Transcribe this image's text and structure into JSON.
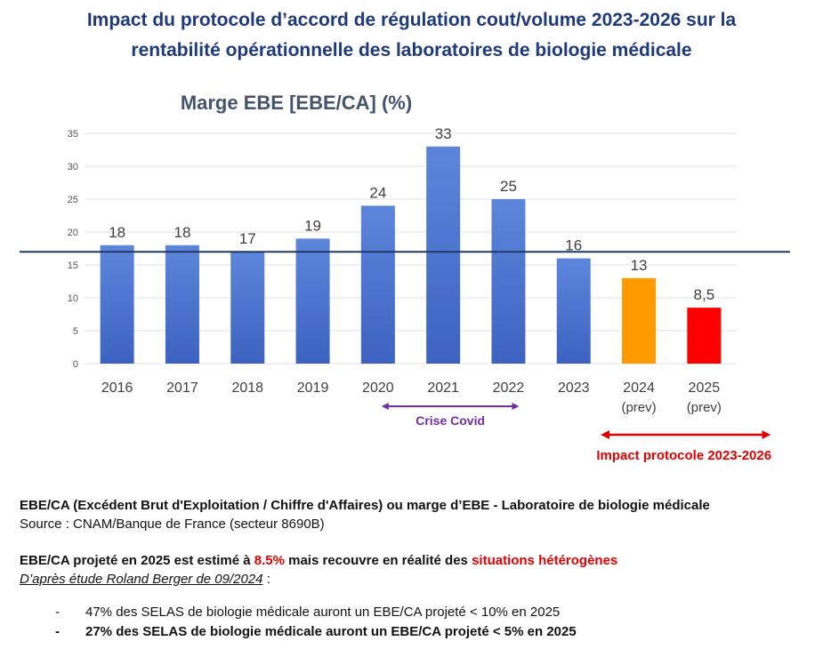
{
  "title": {
    "line1": "Impact du protocole d’accord de régulation cout/volume 2023-2026 sur la",
    "line2": "rentabilité opérationnelle des laboratoires de biologie médicale"
  },
  "chart_data": {
    "type": "bar",
    "title": "Marge EBE [EBE/CA] (%)",
    "categories": [
      "2016",
      "2017",
      "2018",
      "2019",
      "2020",
      "2021",
      "2022",
      "2023",
      "2024",
      "2025"
    ],
    "category_sublabels": [
      "",
      "",
      "",
      "",
      "",
      "",
      "",
      "",
      "(prev)",
      "(prev)"
    ],
    "values": [
      18,
      18,
      17,
      19,
      24,
      33,
      25,
      16,
      13,
      8.5
    ],
    "value_labels": [
      "18",
      "18",
      "17",
      "19",
      "24",
      "33",
      "25",
      "16",
      "13",
      "8,5"
    ],
    "bar_colors": [
      "#4a72d0",
      "#4a72d0",
      "#4a72d0",
      "#4a72d0",
      "#4a72d0",
      "#4a72d0",
      "#4a72d0",
      "#4a72d0",
      "#ff9a00",
      "#ff0000"
    ],
    "ylim": [
      0,
      35
    ],
    "yticks": [
      0,
      5,
      10,
      15,
      20,
      25,
      30,
      35
    ],
    "grid": true,
    "reference_line": 17,
    "annotations": [
      {
        "label": "Crise Covid",
        "from": "2020",
        "to": "2022",
        "color": "#7030a0"
      },
      {
        "label": "Impact protocole 2023-2026",
        "from": "2024",
        "to": "2025",
        "color": "#e00000"
      }
    ]
  },
  "notes": {
    "def_bold": "EBE/CA (Excédent Brut d'Exploitation / Chiffre d'Affaires) ou marge d’EBE - Laboratoire de biologie médicale",
    "source": "Source : CNAM/Banque de France (secteur 8690B)",
    "proj_a": "EBE/CA projeté en 2025 est estimé à ",
    "proj_b": "8.5%",
    "proj_c": " mais recouvre en réalité des ",
    "proj_d": "situations hétérogènes",
    "study": "D’après étude Roland Berger de 09/2024",
    "study_suffix": " :",
    "dash": "-",
    "bullet1": "47% des SELAS de biologie médicale auront un EBE/CA projeté < 10% en 2025",
    "bullet2": "27% des SELAS de biologie médicale auront un EBE/CA projeté < 5% en 2025"
  }
}
